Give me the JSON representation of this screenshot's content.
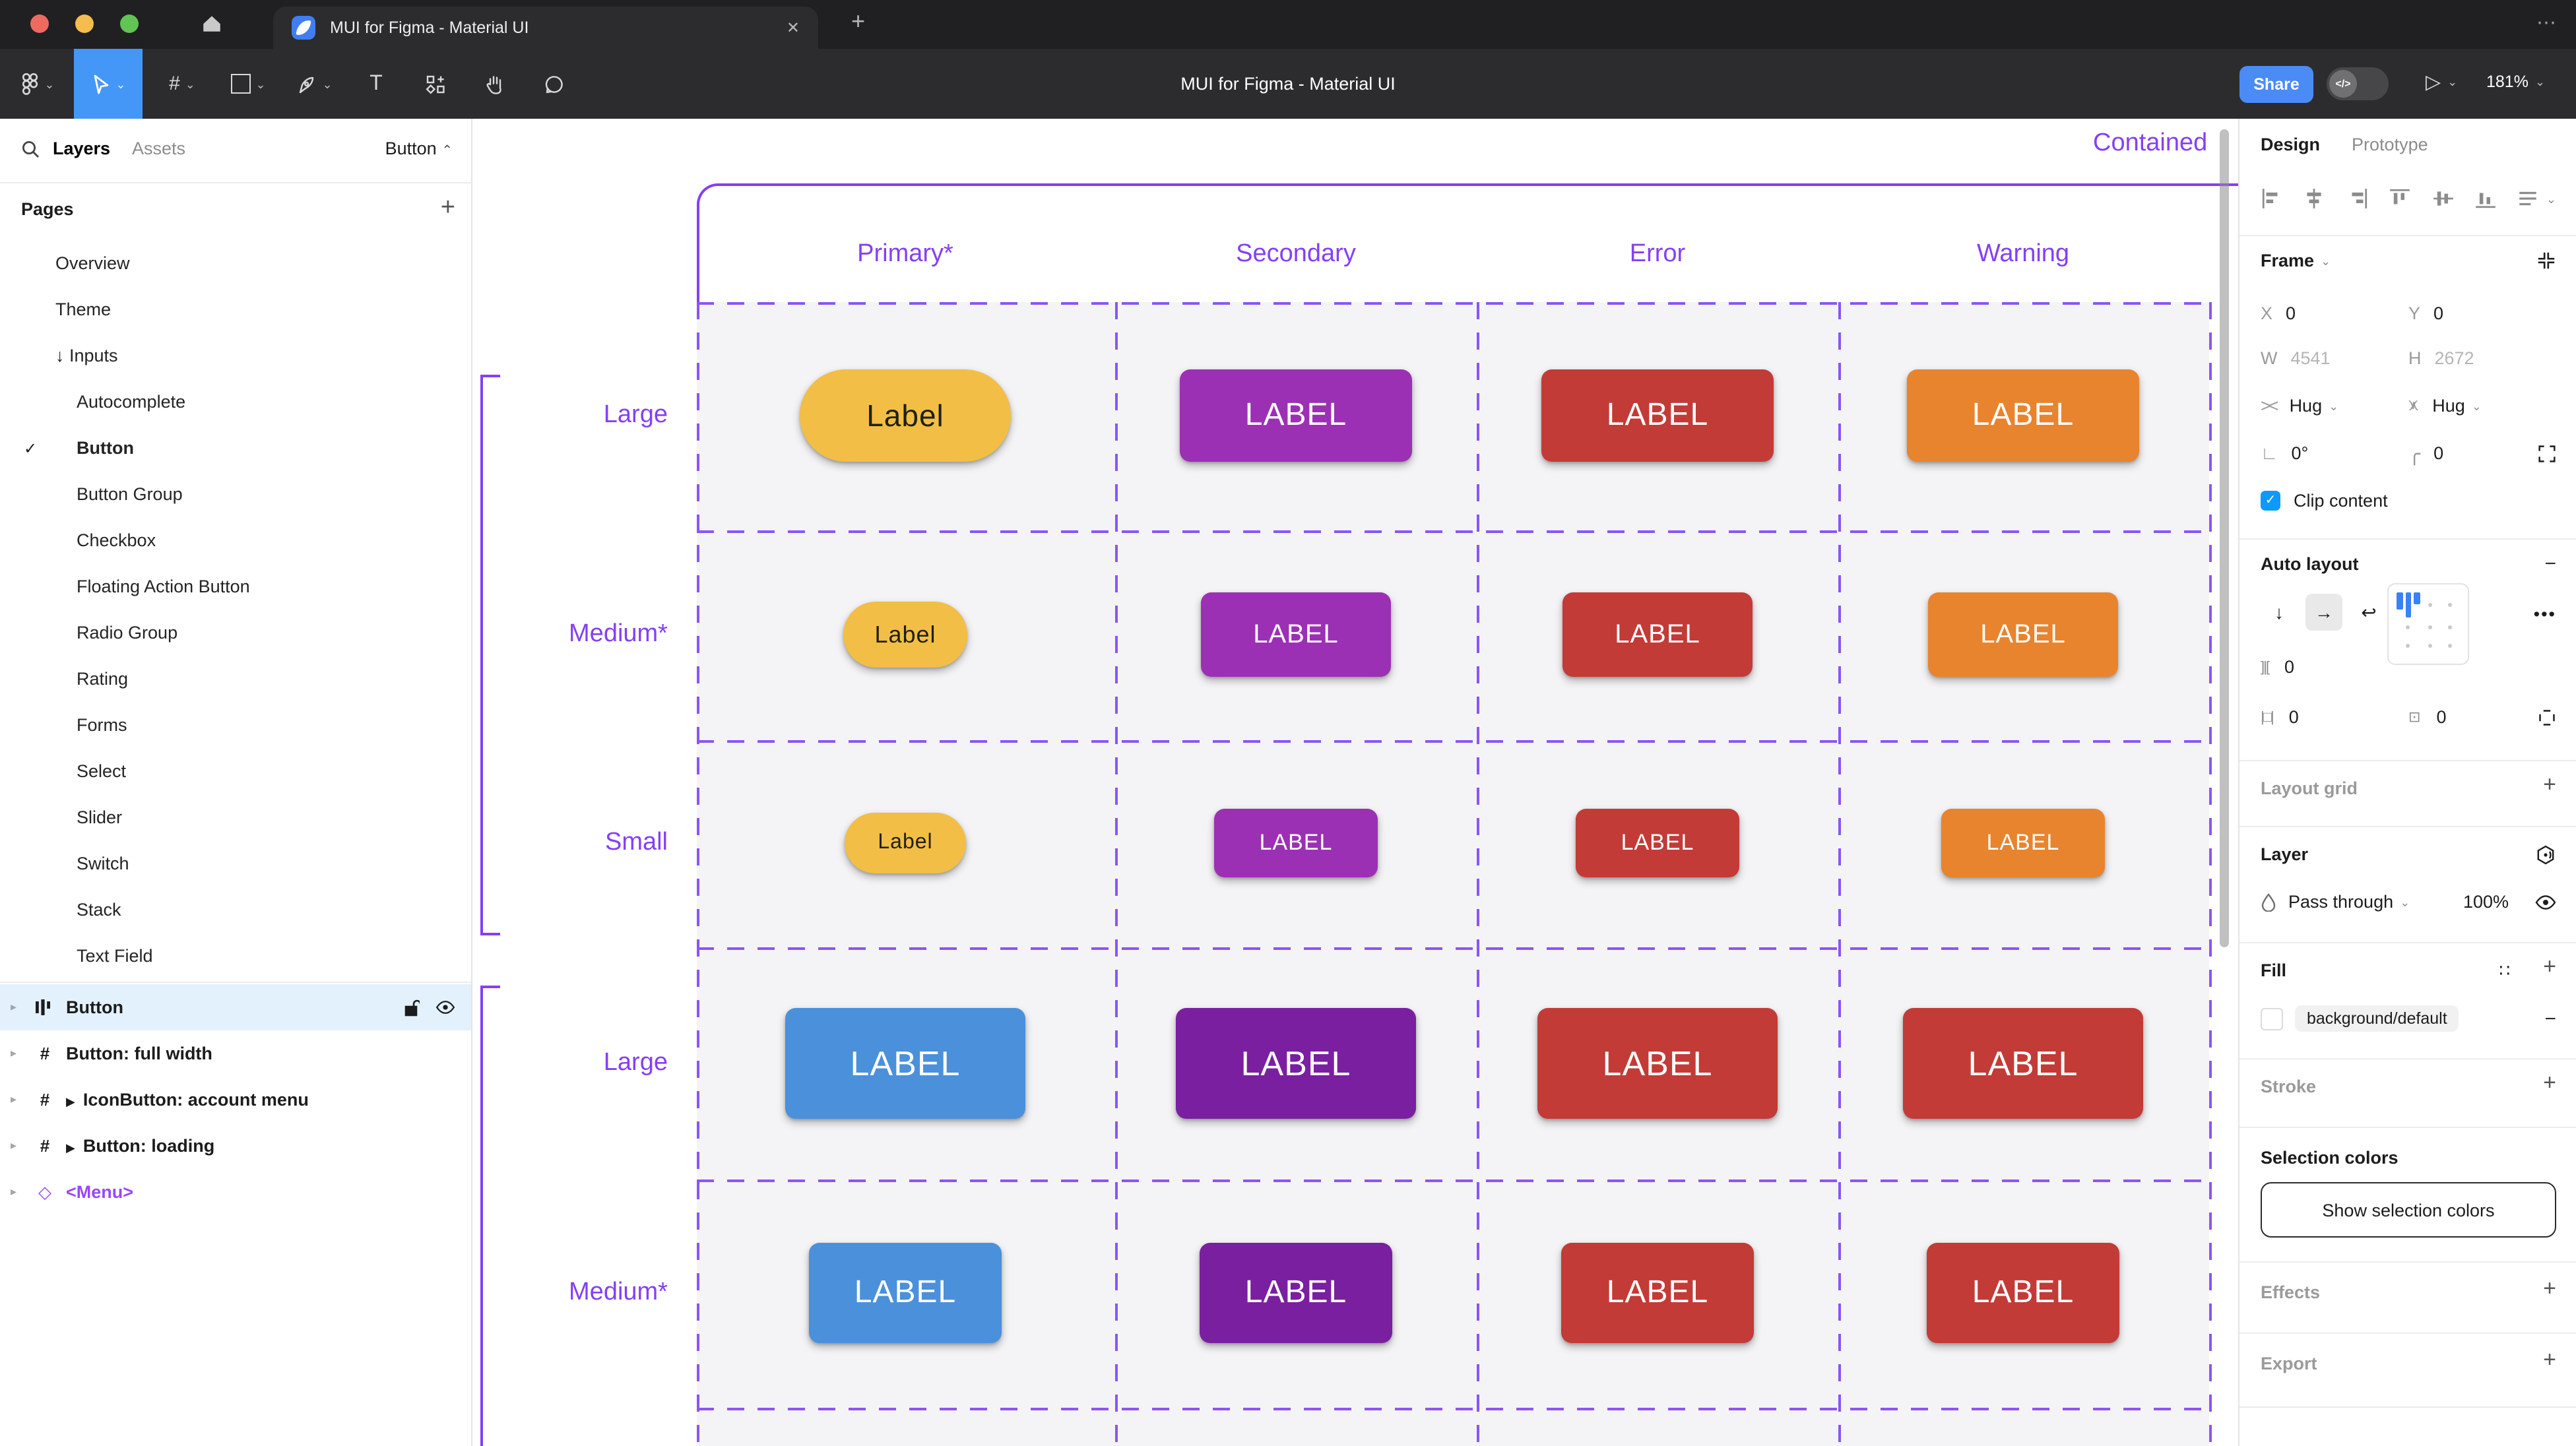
{
  "browser": {
    "tab_title": "MUI for Figma - Material UI",
    "close_glyph": "✕",
    "new_tab_glyph": "+",
    "menu_glyph": "⋯"
  },
  "toolbar": {
    "title": "MUI for Figma - Material UI",
    "share_label": "Share",
    "dev_mode_glyph": "</>",
    "zoom_level": "181%"
  },
  "left_panel": {
    "tabs": {
      "layers": "Layers",
      "assets": "Assets"
    },
    "page_switcher": "Button",
    "pages_header": "Pages",
    "pages": [
      {
        "label": "Overview",
        "indent": 1
      },
      {
        "label": "Theme",
        "indent": 1
      },
      {
        "label": "Inputs",
        "indent": 1,
        "prefix": "↓ "
      },
      {
        "label": "Autocomplete",
        "indent": 2
      },
      {
        "label": "Button",
        "indent": 2,
        "checked": true,
        "bold": true
      },
      {
        "label": "Button Group",
        "indent": 2
      },
      {
        "label": "Checkbox",
        "indent": 2
      },
      {
        "label": "Floating Action Button",
        "indent": 2
      },
      {
        "label": "Radio Group",
        "indent": 2
      },
      {
        "label": "Rating",
        "indent": 2
      },
      {
        "label": "Forms",
        "indent": 2
      },
      {
        "label": "Select",
        "indent": 2
      },
      {
        "label": "Slider",
        "indent": 2
      },
      {
        "label": "Switch",
        "indent": 2
      },
      {
        "label": "Stack",
        "indent": 2
      },
      {
        "label": "Text Field",
        "indent": 2
      }
    ],
    "layers": [
      {
        "label": "Button",
        "icon": "autolayout",
        "selected": true
      },
      {
        "label": "Button: full width",
        "icon": "frame"
      },
      {
        "label": "IconButton: account menu",
        "icon": "frame",
        "expand": true
      },
      {
        "label": "Button: loading",
        "icon": "frame",
        "expand": true
      },
      {
        "label": "<Menu>",
        "icon": "component",
        "purple": true
      }
    ]
  },
  "canvas": {
    "frame_title": "Contained",
    "column_headers": [
      "Primary*",
      "Secondary",
      "Error",
      "Warning"
    ],
    "colors": {
      "yellow": "#F2BE45",
      "yellowText": "#211F14",
      "purple": "#9C30B4",
      "red": "#C23B37",
      "orange": "#E8842E",
      "blue": "#4B90DB",
      "deepPurple": "#7A1FA0",
      "white": "#FFFFFF"
    },
    "rows": [
      {
        "label": "Large",
        "size": "lg",
        "buttons": [
          {
            "text": "Label",
            "variant": "yellow"
          },
          {
            "text": "LABEL",
            "variant": "purple"
          },
          {
            "text": "LABEL",
            "variant": "red"
          },
          {
            "text": "LABEL",
            "variant": "orange"
          }
        ]
      },
      {
        "label": "Medium*",
        "size": "md",
        "buttons": [
          {
            "text": "Label",
            "variant": "yellow"
          },
          {
            "text": "LABEL",
            "variant": "purple"
          },
          {
            "text": "LABEL",
            "variant": "red"
          },
          {
            "text": "LABEL",
            "variant": "orange"
          }
        ]
      },
      {
        "label": "Small",
        "size": "sm",
        "buttons": [
          {
            "text": "Label",
            "variant": "yellow"
          },
          {
            "text": "LABEL",
            "variant": "purple"
          },
          {
            "text": "LABEL",
            "variant": "red"
          },
          {
            "text": "LABEL",
            "variant": "orange"
          }
        ]
      },
      {
        "label": "Large",
        "size": "lg2",
        "buttons": [
          {
            "text": "LABEL",
            "variant": "blue"
          },
          {
            "text": "LABEL",
            "variant": "deepPurple"
          },
          {
            "text": "LABEL",
            "variant": "red"
          },
          {
            "text": "LABEL",
            "variant": "red"
          }
        ]
      },
      {
        "label": "Medium*",
        "size": "md2",
        "buttons": [
          {
            "text": "LABEL",
            "variant": "blue"
          },
          {
            "text": "LABEL",
            "variant": "deepPurple"
          },
          {
            "text": "LABEL",
            "variant": "red"
          },
          {
            "text": "LABEL",
            "variant": "red"
          }
        ]
      }
    ]
  },
  "right_panel": {
    "tabs": {
      "design": "Design",
      "prototype": "Prototype"
    },
    "frame": {
      "header": "Frame",
      "x_label": "X",
      "x_value": "0",
      "y_label": "Y",
      "y_value": "0",
      "w_label": "W",
      "w_value": "4541",
      "h_label": "H",
      "h_value": "2672",
      "hug_h": "Hug",
      "hug_v": "Hug",
      "rotation": "0°",
      "corner_radius": "0",
      "clip_label": "Clip content"
    },
    "auto_layout": {
      "header": "Auto layout",
      "gap": "0",
      "pad_h": "0",
      "pad_v": "0"
    },
    "layout_grid": {
      "header": "Layout grid"
    },
    "layer": {
      "header": "Layer",
      "blend_mode": "Pass through",
      "opacity": "100%"
    },
    "fill": {
      "header": "Fill",
      "style_name": "background/default"
    },
    "stroke": {
      "header": "Stroke"
    },
    "selection_colors": {
      "header": "Selection colors",
      "button_label": "Show selection colors"
    },
    "effects": {
      "header": "Effects"
    },
    "export": {
      "header": "Export"
    }
  }
}
